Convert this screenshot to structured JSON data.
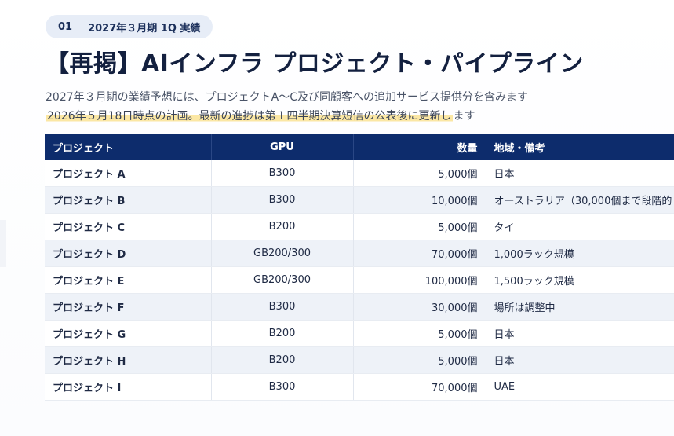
{
  "header": {
    "badge_number": "01",
    "badge_label": "2027年３月期 1Q 実績",
    "title": "【再掲】AIインフラ プロジェクト・パイプライン",
    "subtitle_line1": "2027年３月期の業績予想には、プロジェクトA〜C及び同顧客への追加サービス提供分を含みます",
    "subtitle_line2_highlight": "2026年５月18日時点の計画。最新の進捗は第１四半期決算短信の公表後に更新し",
    "subtitle_line2_rest": "ます"
  },
  "table": {
    "columns": [
      "プロジェクト",
      "GPU",
      "数量",
      "地域・備考"
    ],
    "rows": [
      {
        "project": "プロジェクト A",
        "gpu": "B300",
        "qty": "5,000個",
        "note": "日本"
      },
      {
        "project": "プロジェクト B",
        "gpu": "B300",
        "qty": "10,000個",
        "note": "オーストラリア（30,000個まで段階的"
      },
      {
        "project": "プロジェクト C",
        "gpu": "B200",
        "qty": "5,000個",
        "note": "タイ"
      },
      {
        "project": "プロジェクト D",
        "gpu": "GB200/300",
        "qty": "70,000個",
        "note": "1,000ラック規模"
      },
      {
        "project": "プロジェクト E",
        "gpu": "GB200/300",
        "qty": "100,000個",
        "note": "1,500ラック規模"
      },
      {
        "project": "プロジェクト F",
        "gpu": "B300",
        "qty": "30,000個",
        "note": "場所は調整中"
      },
      {
        "project": "プロジェクト G",
        "gpu": "B200",
        "qty": "5,000個",
        "note": "日本"
      },
      {
        "project": "プロジェクト H",
        "gpu": "B200",
        "qty": "5,000個",
        "note": "日本"
      },
      {
        "project": "プロジェクト I",
        "gpu": "B300",
        "qty": "70,000個",
        "note": "UAE"
      }
    ]
  },
  "colors": {
    "header_bg": "#0d2c6c",
    "badge_bg": "#e7edf7",
    "highlight": "#fbe7a4",
    "zebra": "#eef2f8"
  }
}
